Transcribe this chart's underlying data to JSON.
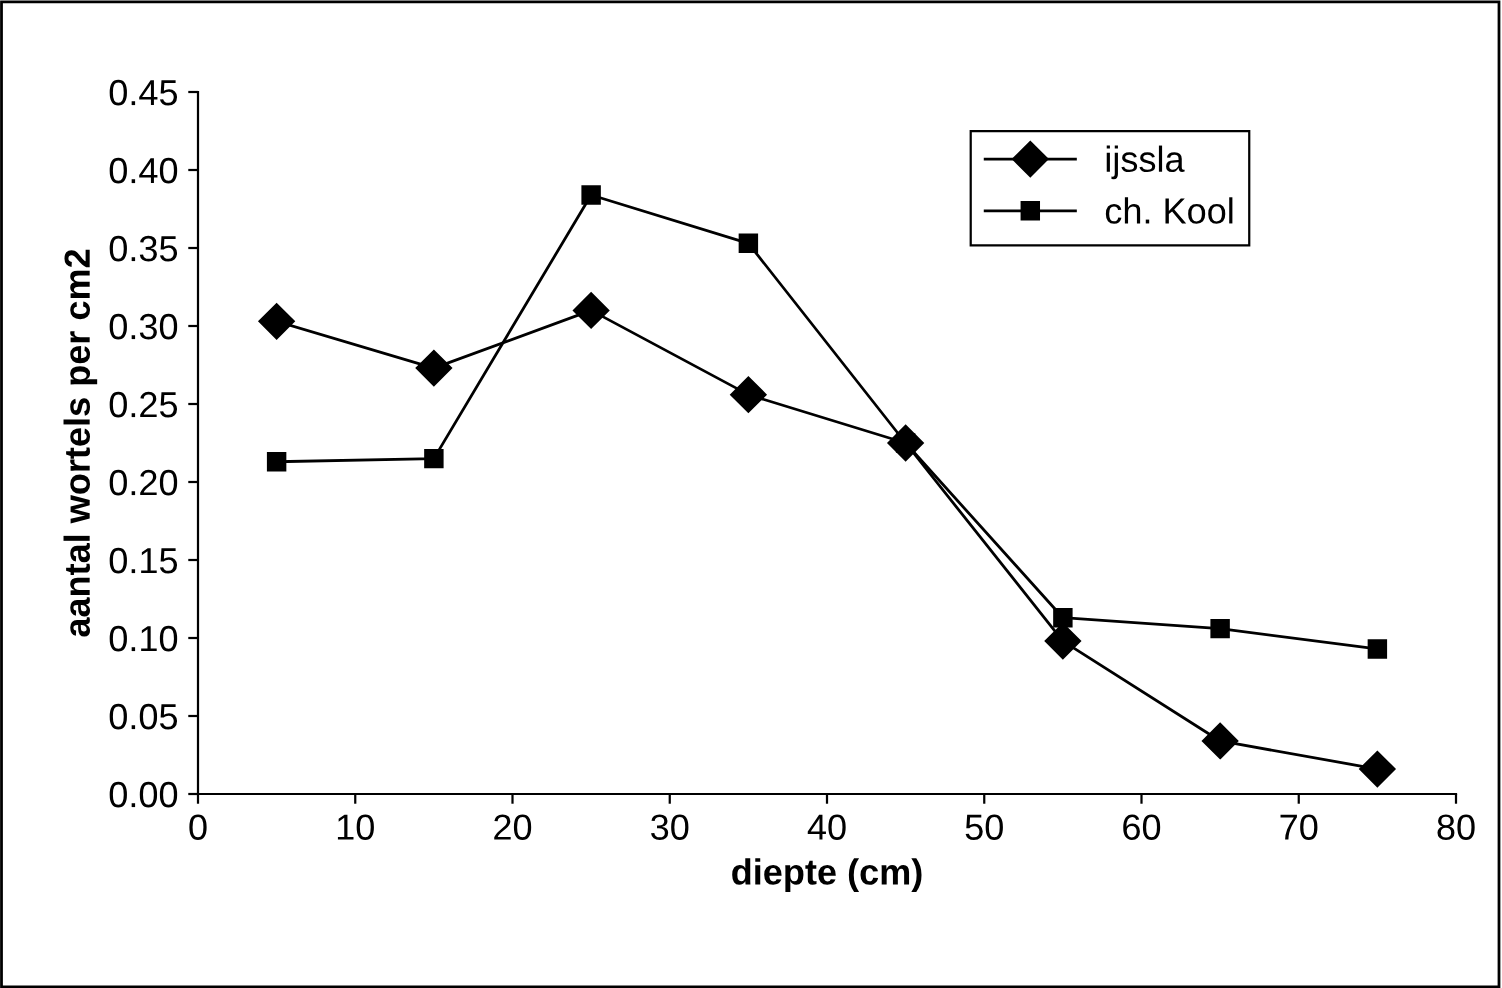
{
  "chart_data": {
    "type": "line",
    "xlabel": "diepte (cm)",
    "ylabel": "aantal wortels per cm2",
    "x": [
      5,
      15,
      25,
      35,
      45,
      55,
      65,
      75
    ],
    "series": [
      {
        "name": "ijssla",
        "color": "#000000",
        "marker": "diamond",
        "values": [
          0.303,
          0.273,
          0.31,
          0.256,
          0.225,
          0.098,
          0.034,
          0.016
        ]
      },
      {
        "name": "ch. Kool",
        "color": "#000000",
        "marker": "square",
        "values": [
          0.213,
          0.215,
          0.384,
          0.353,
          0.225,
          0.113,
          0.106,
          0.093
        ]
      }
    ],
    "xlim": [
      0,
      80
    ],
    "xticks": [
      0,
      10,
      20,
      30,
      40,
      50,
      60,
      70,
      80
    ],
    "ylim": [
      0,
      0.45
    ],
    "yticks": [
      {
        "value": 0,
        "label": "0.00"
      },
      {
        "value": 0.05,
        "label": "0.05"
      },
      {
        "value": 0.1,
        "label": "0.10"
      },
      {
        "value": 0.15,
        "label": "0.15"
      },
      {
        "value": 0.2,
        "label": "0.20"
      },
      {
        "value": 0.25,
        "label": "0.25"
      },
      {
        "value": 0.3,
        "label": "0.30"
      },
      {
        "value": 0.35,
        "label": "0.35"
      },
      {
        "value": 0.4,
        "label": "0.40"
      },
      {
        "value": 0.45,
        "label": "0.45"
      }
    ],
    "grid": false,
    "legend": "top right",
    "line_style": "solid"
  }
}
